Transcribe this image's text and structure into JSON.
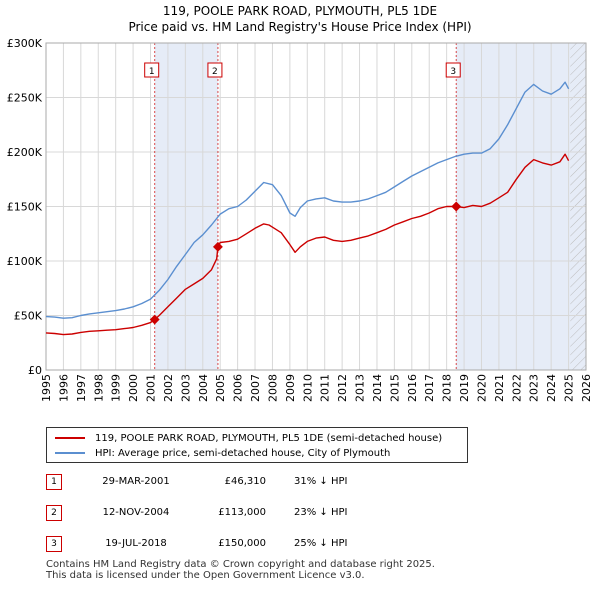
{
  "title_line1": "119, POOLE PARK ROAD, PLYMOUTH, PL5 1DE",
  "title_line2": "Price paid vs. HM Land Registry's House Price Index (HPI)",
  "colors": {
    "price_line": "#cc0000",
    "hpi_line": "#5b8fd0",
    "shade": "#e6ecf7",
    "grid": "#d8d8d8"
  },
  "legend": {
    "price_label": "119, POOLE PARK ROAD, PLYMOUTH, PL5 1DE (semi-detached house)",
    "hpi_label": "HPI: Average price, semi-detached house, City of Plymouth"
  },
  "sales": [
    {
      "num": "1",
      "date": "29-MAR-2001",
      "price": "£46,310",
      "hpi": "31% ↓ HPI"
    },
    {
      "num": "2",
      "date": "12-NOV-2004",
      "price": "£113,000",
      "hpi": "23% ↓ HPI"
    },
    {
      "num": "3",
      "date": "19-JUL-2018",
      "price": "£150,000",
      "hpi": "25% ↓ HPI"
    }
  ],
  "footer_line1": "Contains HM Land Registry data © Crown copyright and database right 2025.",
  "footer_line2": "This data is licensed under the Open Government Licence v3.0.",
  "chart_data": {
    "type": "line",
    "title": "119, POOLE PARK ROAD, PLYMOUTH, PL5 1DE",
    "subtitle": "Price paid vs. HM Land Registry's House Price Index (HPI)",
    "xlabel": "",
    "ylabel": "",
    "xlim": [
      1995,
      2026
    ],
    "ylim": [
      0,
      300000
    ],
    "x_ticks": [
      1995,
      1996,
      1997,
      1998,
      1999,
      2000,
      2001,
      2002,
      2003,
      2004,
      2005,
      2006,
      2007,
      2008,
      2009,
      2010,
      2011,
      2012,
      2013,
      2014,
      2015,
      2016,
      2017,
      2018,
      2019,
      2020,
      2021,
      2022,
      2023,
      2024,
      2025,
      2026
    ],
    "y_ticks": [
      {
        "value": 0,
        "label": "£0"
      },
      {
        "value": 50000,
        "label": "£50K"
      },
      {
        "value": 100000,
        "label": "£100K"
      },
      {
        "value": 150000,
        "label": "£150K"
      },
      {
        "value": 200000,
        "label": "£200K"
      },
      {
        "value": 250000,
        "label": "£250K"
      },
      {
        "value": 300000,
        "label": "£300K"
      }
    ],
    "grid": true,
    "legend_position": "below",
    "sale_markers": [
      {
        "label": "1",
        "x": 2001.24,
        "y": 46310
      },
      {
        "label": "2",
        "x": 2004.87,
        "y": 113000
      },
      {
        "label": "3",
        "x": 2018.55,
        "y": 150000
      }
    ],
    "shaded_spans": [
      [
        2001.24,
        2004.87
      ],
      [
        2018.55,
        2026
      ]
    ],
    "future_hatch_from": 2025.1,
    "series": [
      {
        "name": "119, POOLE PARK ROAD, PLYMOUTH, PL5 1DE (semi-detached house)",
        "x": [
          1995.0,
          1995.5,
          1996.0,
          1996.5,
          1997.0,
          1997.5,
          1998.0,
          1998.5,
          1999.0,
          1999.5,
          2000.0,
          2000.5,
          2001.0,
          2001.24,
          2001.5,
          2002.0,
          2002.5,
          2003.0,
          2003.5,
          2004.0,
          2004.5,
          2004.8,
          2004.87,
          2005.0,
          2005.5,
          2006.0,
          2006.5,
          2007.0,
          2007.5,
          2007.8,
          2008.0,
          2008.5,
          2009.0,
          2009.3,
          2009.6,
          2010.0,
          2010.5,
          2011.0,
          2011.5,
          2012.0,
          2012.5,
          2013.0,
          2013.5,
          2014.0,
          2014.5,
          2015.0,
          2015.5,
          2016.0,
          2016.5,
          2017.0,
          2017.5,
          2018.0,
          2018.55,
          2019.0,
          2019.5,
          2020.0,
          2020.5,
          2021.0,
          2021.5,
          2022.0,
          2022.5,
          2023.0,
          2023.5,
          2024.0,
          2024.5,
          2024.8,
          2025.0
        ],
        "values": [
          34000,
          33500,
          32500,
          33000,
          34500,
          35500,
          36000,
          36500,
          37000,
          38000,
          39000,
          41000,
          43500,
          46310,
          50000,
          58000,
          66000,
          74000,
          79000,
          84000,
          92000,
          102000,
          113000,
          117000,
          118000,
          120000,
          125000,
          130000,
          134000,
          133000,
          131000,
          126000,
          115000,
          108000,
          113000,
          118000,
          121000,
          122000,
          119000,
          118000,
          119000,
          121000,
          123000,
          126000,
          129000,
          133000,
          136000,
          139000,
          141000,
          144000,
          148000,
          150000,
          150000,
          149000,
          151000,
          150000,
          153000,
          158000,
          163000,
          175000,
          186000,
          193000,
          190000,
          188000,
          191000,
          198000,
          192000
        ]
      },
      {
        "name": "HPI: Average price, semi-detached house, City of Plymouth",
        "x": [
          1995.0,
          1995.5,
          1996.0,
          1996.5,
          1997.0,
          1997.5,
          1998.0,
          1998.5,
          1999.0,
          1999.5,
          2000.0,
          2000.5,
          2001.0,
          2001.5,
          2002.0,
          2002.5,
          2003.0,
          2003.5,
          2004.0,
          2004.5,
          2005.0,
          2005.5,
          2006.0,
          2006.5,
          2007.0,
          2007.5,
          2008.0,
          2008.5,
          2009.0,
          2009.3,
          2009.6,
          2010.0,
          2010.5,
          2011.0,
          2011.5,
          2012.0,
          2012.5,
          2013.0,
          2013.5,
          2014.0,
          2014.5,
          2015.0,
          2015.5,
          2016.0,
          2016.5,
          2017.0,
          2017.5,
          2018.0,
          2018.5,
          2019.0,
          2019.5,
          2020.0,
          2020.5,
          2021.0,
          2021.5,
          2022.0,
          2022.5,
          2023.0,
          2023.5,
          2024.0,
          2024.5,
          2024.8,
          2025.0
        ],
        "values": [
          49000,
          48500,
          47500,
          48000,
          50000,
          51500,
          52500,
          53500,
          54500,
          56000,
          58000,
          61000,
          65000,
          73000,
          83000,
          95000,
          106000,
          117000,
          124000,
          133000,
          143000,
          148000,
          150000,
          156000,
          164000,
          172000,
          170000,
          160000,
          144000,
          141000,
          149000,
          155000,
          157000,
          158000,
          155000,
          154000,
          154000,
          155000,
          157000,
          160000,
          163000,
          168000,
          173000,
          178000,
          182000,
          186000,
          190000,
          193000,
          196000,
          198000,
          199000,
          199000,
          203000,
          212000,
          225000,
          240000,
          255000,
          262000,
          256000,
          253000,
          258000,
          264000,
          258000
        ]
      }
    ]
  }
}
